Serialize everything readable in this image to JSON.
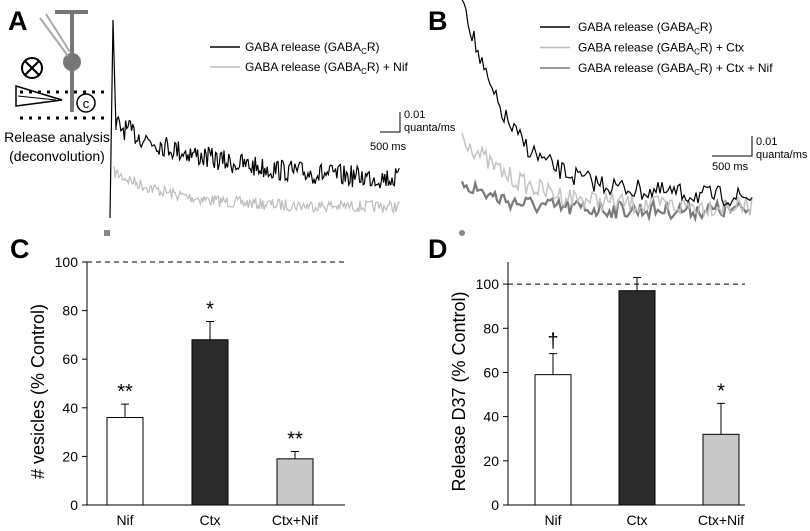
{
  "panels": {
    "A": {
      "label": "A",
      "legend": [
        {
          "text": [
            "GABA release (GABA",
            "C",
            "R)"
          ],
          "color": "#000000"
        },
        {
          "text": [
            "GABA release (GABA",
            "C",
            "R) + Nif"
          ],
          "color": "#bdbdbd"
        }
      ],
      "scalebar": {
        "amplitude": "0.01",
        "unit": "quanta/ms",
        "time": "500 ms"
      },
      "caption": [
        "Release analysis",
        "(deconvolution)"
      ]
    },
    "B": {
      "label": "B",
      "legend": [
        {
          "text": [
            "GABA release (GABA",
            "C",
            "R)"
          ],
          "color": "#000000"
        },
        {
          "text": [
            "GABA release (GABA",
            "C",
            "R) + Ctx"
          ],
          "color": "#bdbdbd"
        },
        {
          "text": [
            "GABA release (GABA",
            "C",
            "R) + Ctx + Nif"
          ],
          "color": "#7a7a7a"
        }
      ],
      "scalebar": {
        "amplitude": "0.01",
        "unit": "quanta/ms",
        "time": "500 ms"
      }
    }
  },
  "chart_data": [
    {
      "type": "bar",
      "panel_label": "C",
      "y_label": "# vesicles (% Control)",
      "categories": [
        "Nif",
        "Ctx",
        "Ctx+Nif"
      ],
      "values": [
        36,
        68,
        19
      ],
      "errors": [
        5.5,
        7.5,
        3
      ],
      "colors": [
        "#ffffff",
        "#2b2b2b",
        "#c8c8c8"
      ],
      "annotations": [
        "**",
        "*",
        "**"
      ],
      "reference_line": 100,
      "ylim": [
        0,
        100
      ],
      "yticks": [
        0,
        20,
        40,
        60,
        80,
        100
      ]
    },
    {
      "type": "bar",
      "panel_label": "D",
      "y_label": "Release D37  (% Control)",
      "categories": [
        "Nif",
        "Ctx",
        "Ctx+Nif"
      ],
      "values": [
        59,
        97,
        32
      ],
      "errors": [
        9.5,
        6,
        14
      ],
      "colors": [
        "#ffffff",
        "#2b2b2b",
        "#c8c8c8"
      ],
      "annotations": [
        "†",
        null,
        "*"
      ],
      "reference_line": 100,
      "ylim": [
        0,
        110
      ],
      "yticks": [
        0,
        20,
        40,
        60,
        80,
        100
      ]
    }
  ]
}
